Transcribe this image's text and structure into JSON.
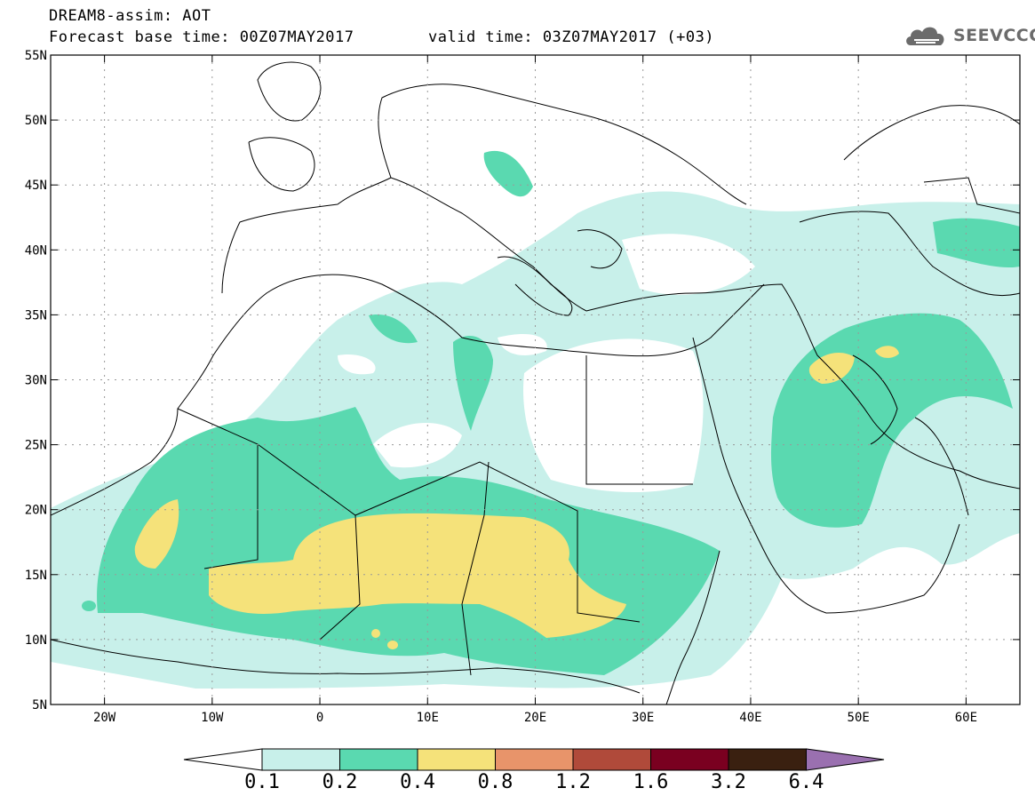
{
  "header": {
    "model_title": "DREAM8-assim: AOT",
    "base_time": "Forecast base time: 00Z07MAY2017",
    "valid_time": "valid time: 03Z07MAY2017 (+03)"
  },
  "logo": {
    "text": "SEEVCCC",
    "icon": "cloud-icon"
  },
  "map": {
    "lon_range": [
      -25,
      65
    ],
    "lat_range": [
      5,
      55
    ],
    "lon_ticks": [
      {
        "lon": -20,
        "label": "20W"
      },
      {
        "lon": -10,
        "label": "10W"
      },
      {
        "lon": 0,
        "label": "0"
      },
      {
        "lon": 10,
        "label": "10E"
      },
      {
        "lon": 20,
        "label": "20E"
      },
      {
        "lon": 30,
        "label": "30E"
      },
      {
        "lon": 40,
        "label": "40E"
      },
      {
        "lon": 50,
        "label": "50E"
      },
      {
        "lon": 60,
        "label": "60E"
      }
    ],
    "lat_ticks": [
      {
        "lat": 55,
        "label": "55N"
      },
      {
        "lat": 50,
        "label": "50N"
      },
      {
        "lat": 45,
        "label": "45N"
      },
      {
        "lat": 40,
        "label": "40N"
      },
      {
        "lat": 35,
        "label": "35N"
      },
      {
        "lat": 30,
        "label": "30N"
      },
      {
        "lat": 25,
        "label": "25N"
      },
      {
        "lat": 20,
        "label": "20N"
      },
      {
        "lat": 15,
        "label": "15N"
      },
      {
        "lat": 10,
        "label": "10N"
      },
      {
        "lat": 5,
        "label": "5N"
      }
    ],
    "grid": true
  },
  "colorbar": {
    "colors": [
      "#ffffff",
      "#c8f0ea",
      "#5ad9b0",
      "#f5e27a",
      "#e8946a",
      "#b04a3a",
      "#7a0020",
      "#3a2010",
      "#9a70b0"
    ],
    "labels": [
      "0.1",
      "0.2",
      "0.4",
      "0.8",
      "1.2",
      "1.6",
      "3.2",
      "6.4"
    ]
  }
}
